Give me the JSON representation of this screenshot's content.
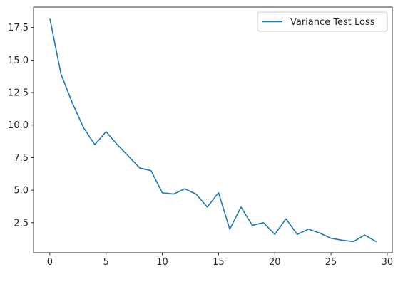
{
  "chart_data": {
    "type": "line",
    "title": "",
    "xlabel": "",
    "ylabel": "",
    "xlim": [
      -1.45,
      30.45
    ],
    "ylim": [
      0.19,
      19.07
    ],
    "xticks": [
      0,
      5,
      10,
      15,
      20,
      25,
      30
    ],
    "xtick_labels": [
      "0",
      "5",
      "10",
      "15",
      "20",
      "25",
      "30"
    ],
    "yticks": [
      2.5,
      5.0,
      7.5,
      10.0,
      12.5,
      15.0,
      17.5
    ],
    "ytick_labels": [
      "2.5",
      "5.0",
      "7.5",
      "10.0",
      "12.5",
      "15.0",
      "17.5"
    ],
    "grid": false,
    "legend_position": "top-right",
    "series": [
      {
        "name": "Variance Test Loss",
        "color": "#1f77b4",
        "x": [
          0,
          1,
          2,
          3,
          4,
          5,
          6,
          7,
          8,
          9,
          10,
          11,
          12,
          13,
          14,
          15,
          16,
          17,
          18,
          19,
          20,
          21,
          22,
          23,
          24,
          25,
          26,
          27,
          28,
          29
        ],
        "values": [
          18.2,
          13.9,
          11.7,
          9.8,
          8.5,
          9.5,
          8.5,
          7.6,
          6.7,
          6.5,
          4.8,
          4.7,
          5.1,
          4.7,
          3.7,
          4.8,
          2.0,
          3.7,
          2.3,
          2.5,
          1.6,
          2.8,
          1.6,
          2.0,
          1.7,
          1.3,
          1.15,
          1.05,
          1.55,
          1.05
        ]
      }
    ]
  }
}
